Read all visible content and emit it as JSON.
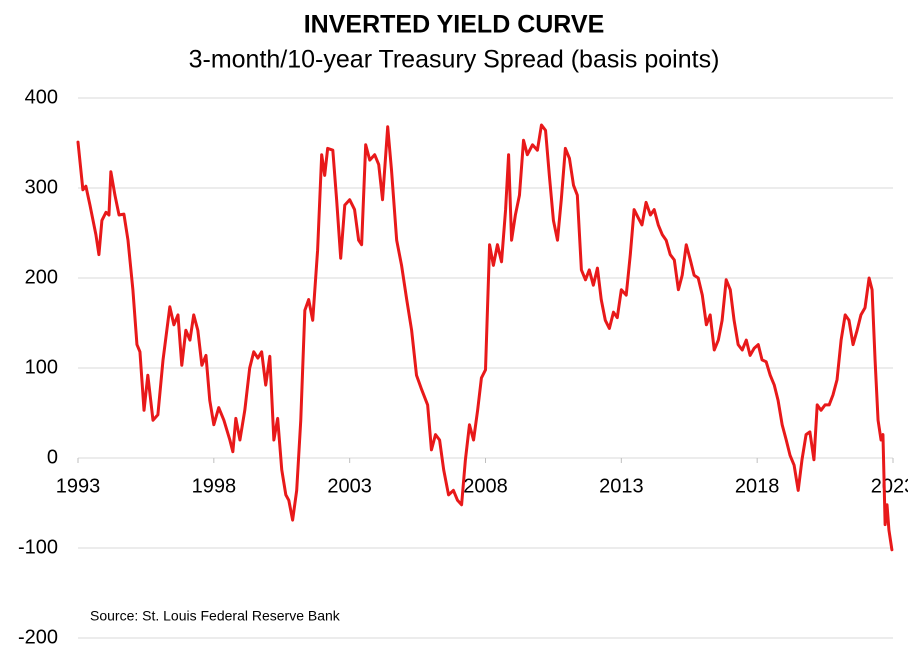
{
  "chart_data": {
    "type": "line",
    "title": "INVERTED YIELD CURVE",
    "subtitle": "3-month/10-year Treasury Spread (basis points)",
    "source": "Source: St. Louis Federal Reserve Bank",
    "color": "#e8191a",
    "grid": true,
    "xlim": [
      1993,
      2023
    ],
    "xticks": [
      1993,
      1998,
      2003,
      2008,
      2013,
      2018,
      2023
    ],
    "ylim": [
      -200,
      400
    ],
    "yticks": [
      -200,
      -100,
      0,
      100,
      200,
      300,
      400
    ],
    "x": [
      1993.0,
      1993.18,
      1993.29,
      1993.44,
      1993.66,
      1993.77,
      1993.88,
      1994.03,
      1994.14,
      1994.21,
      1994.36,
      1994.51,
      1994.69,
      1994.84,
      1995.02,
      1995.17,
      1995.28,
      1995.43,
      1995.57,
      1995.76,
      1995.94,
      1996.13,
      1996.38,
      1996.53,
      1996.68,
      1996.82,
      1996.97,
      1997.12,
      1997.26,
      1997.41,
      1997.56,
      1997.71,
      1997.85,
      1998.0,
      1998.18,
      1998.37,
      1998.59,
      1998.7,
      1998.81,
      1998.96,
      1999.14,
      1999.32,
      1999.47,
      1999.62,
      1999.76,
      1999.91,
      2000.06,
      2000.21,
      2000.35,
      2000.5,
      2000.65,
      2000.76,
      2000.9,
      2001.05,
      2001.2,
      2001.35,
      2001.49,
      2001.64,
      2001.82,
      2001.97,
      2002.08,
      2002.19,
      2002.38,
      2002.52,
      2002.67,
      2002.82,
      2003.0,
      2003.18,
      2003.33,
      2003.44,
      2003.59,
      2003.74,
      2003.92,
      2004.07,
      2004.21,
      2004.4,
      2004.54,
      2004.73,
      2004.91,
      2005.1,
      2005.28,
      2005.46,
      2005.65,
      2005.87,
      2006.01,
      2006.16,
      2006.31,
      2006.46,
      2006.64,
      2006.82,
      2006.97,
      2007.12,
      2007.26,
      2007.41,
      2007.56,
      2007.71,
      2007.85,
      2008.0,
      2008.15,
      2008.29,
      2008.44,
      2008.59,
      2008.74,
      2008.85,
      2008.96,
      2009.1,
      2009.25,
      2009.4,
      2009.54,
      2009.73,
      2009.91,
      2010.06,
      2010.21,
      2010.35,
      2010.5,
      2010.65,
      2010.79,
      2010.94,
      2011.09,
      2011.24,
      2011.38,
      2011.53,
      2011.68,
      2011.82,
      2011.97,
      2012.12,
      2012.26,
      2012.41,
      2012.56,
      2012.71,
      2012.85,
      2013.0,
      2013.18,
      2013.33,
      2013.47,
      2013.62,
      2013.76,
      2013.91,
      2014.07,
      2014.21,
      2014.36,
      2014.51,
      2014.65,
      2014.8,
      2014.95,
      2015.1,
      2015.24,
      2015.39,
      2015.54,
      2015.68,
      2015.83,
      2015.98,
      2016.13,
      2016.27,
      2016.42,
      2016.57,
      2016.71,
      2016.86,
      2017.01,
      2017.15,
      2017.3,
      2017.45,
      2017.6,
      2017.74,
      2017.89,
      2018.04,
      2018.18,
      2018.33,
      2018.48,
      2018.63,
      2018.77,
      2018.92,
      2019.07,
      2019.21,
      2019.36,
      2019.51,
      2019.65,
      2019.8,
      2019.94,
      2020.09,
      2020.21,
      2020.35,
      2020.5,
      2020.65,
      2020.79,
      2020.94,
      2021.09,
      2021.24,
      2021.38,
      2021.53,
      2021.68,
      2021.82,
      2021.97,
      2022.12,
      2022.23,
      2022.34,
      2022.45,
      2022.56,
      2022.63,
      2022.71,
      2022.78,
      2022.85,
      2022.96
    ],
    "values": [
      351,
      298,
      302,
      281,
      248,
      226,
      264,
      273,
      270,
      318,
      292,
      270,
      271,
      242,
      187,
      126,
      118,
      53,
      92,
      42,
      48,
      109,
      168,
      148,
      159,
      103,
      142,
      131,
      159,
      142,
      103,
      114,
      64,
      37,
      56,
      42,
      20,
      7,
      44,
      20,
      53,
      100,
      118,
      111,
      118,
      81,
      113,
      20,
      44,
      -13,
      -41,
      -47,
      -69,
      -36,
      42,
      164,
      176,
      153,
      231,
      337,
      314,
      344,
      342,
      287,
      222,
      281,
      287,
      276,
      242,
      237,
      348,
      331,
      337,
      326,
      287,
      368,
      320,
      242,
      214,
      176,
      142,
      92,
      76,
      59,
      9,
      26,
      20,
      -13,
      -41,
      -36,
      -47,
      -52,
      -2,
      37,
      20,
      53,
      89,
      98,
      237,
      214,
      237,
      218,
      276,
      337,
      242,
      270,
      292,
      353,
      337,
      348,
      342,
      370,
      364,
      314,
      264,
      242,
      287,
      344,
      333,
      303,
      292,
      209,
      198,
      209,
      192,
      211,
      176,
      153,
      144,
      162,
      156,
      187,
      181,
      226,
      276,
      267,
      259,
      284,
      270,
      276,
      259,
      248,
      242,
      226,
      220,
      187,
      203,
      237,
      220,
      203,
      200,
      181,
      148,
      159,
      120,
      131,
      153,
      198,
      187,
      153,
      126,
      120,
      131,
      114,
      122,
      126,
      109,
      107,
      92,
      81,
      64,
      37,
      20,
      3,
      -8,
      -36,
      -2,
      26,
      29,
      -2,
      59,
      53,
      59,
      59,
      70,
      87,
      131,
      159,
      153,
      126,
      142,
      159,
      167,
      200,
      187,
      109,
      42,
      20,
      26,
      -74,
      -52,
      -80,
      -102
    ]
  }
}
